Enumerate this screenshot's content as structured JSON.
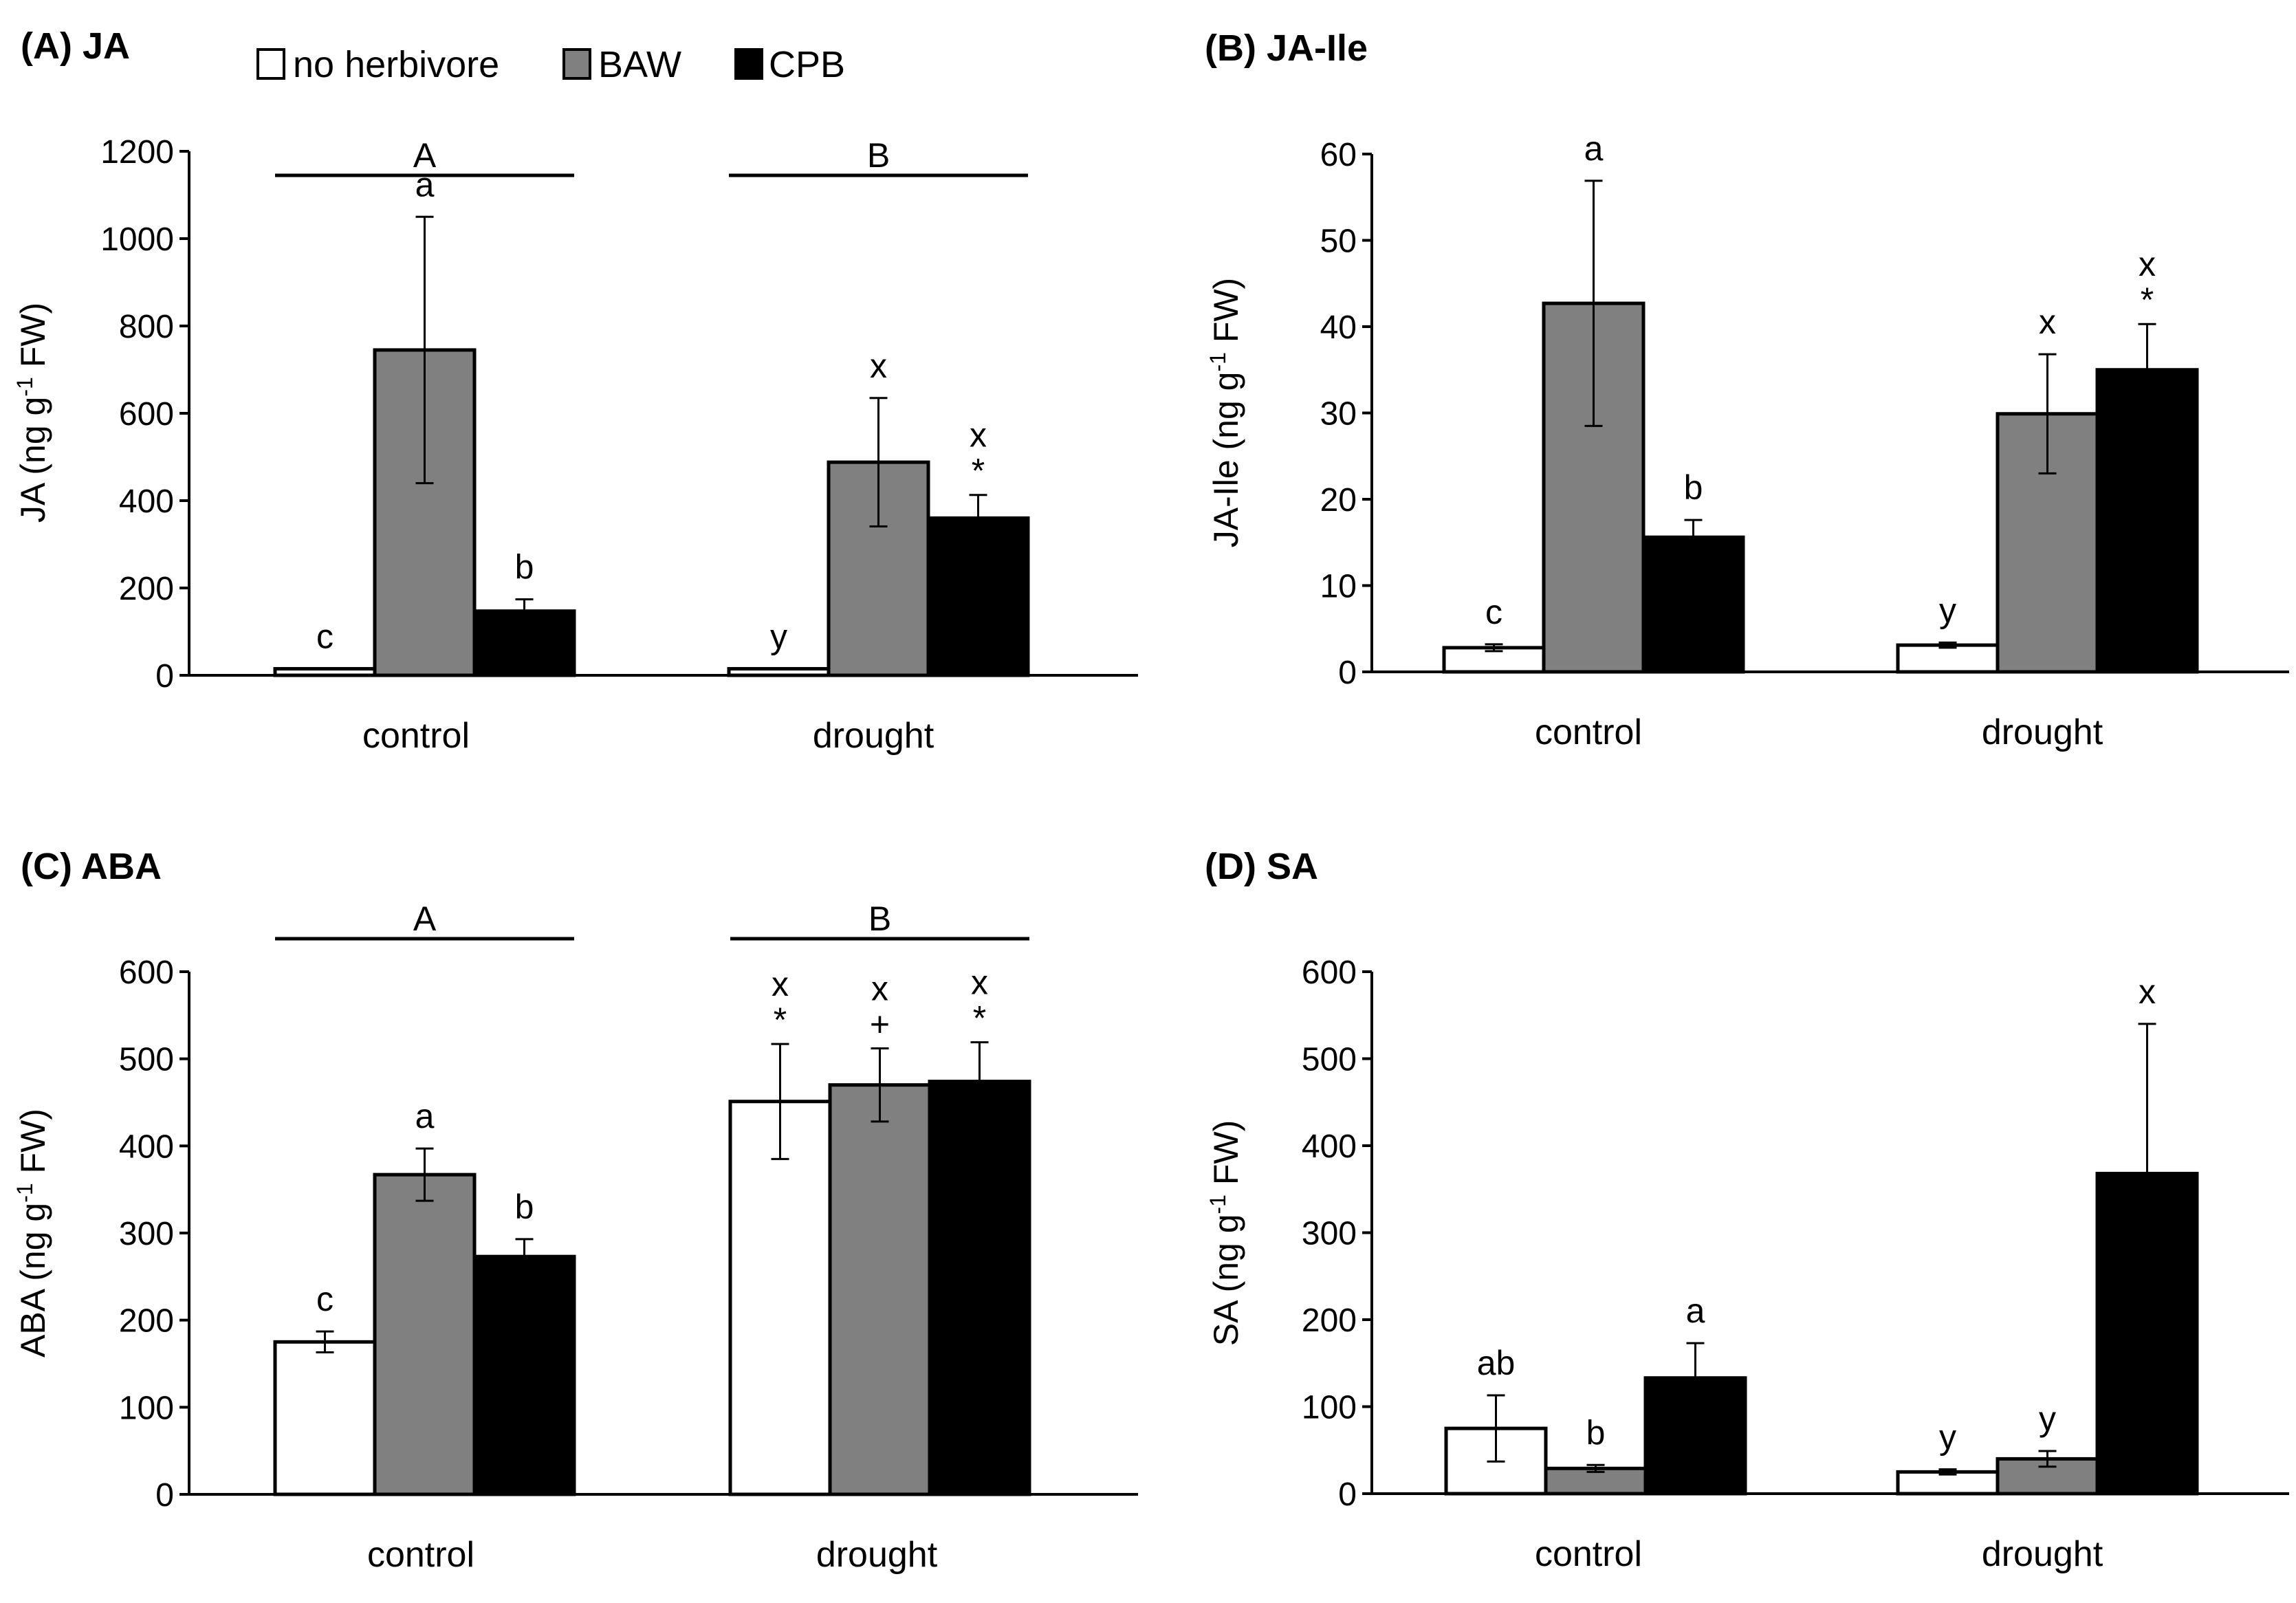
{
  "legend": {
    "items": [
      {
        "label": "no herbivore",
        "color": "#ffffff"
      },
      {
        "label": "BAW",
        "color": "#808080"
      },
      {
        "label": "CPB",
        "color": "#000000"
      }
    ]
  },
  "chart_data": [
    {
      "type": "bar",
      "title": "(A) JA",
      "ylabel_main": "JA (ng g",
      "ylabel_sup": "-1",
      "ylabel_end": " FW)",
      "ylim": [
        0,
        1200
      ],
      "yticks": [
        0,
        200,
        400,
        600,
        800,
        1000,
        1200
      ],
      "categories": [
        "control",
        "drought"
      ],
      "series": [
        {
          "name": "no herbivore",
          "color": "#ffffff",
          "values": [
            15,
            15
          ],
          "errors": [
            0,
            0
          ],
          "letters": [
            "c",
            "y"
          ],
          "marks": [
            "",
            ""
          ]
        },
        {
          "name": "BAW",
          "color": "#808080",
          "values": [
            745,
            488
          ],
          "errors": [
            305,
            147
          ],
          "letters": [
            "a",
            "x"
          ],
          "marks": [
            "",
            ""
          ]
        },
        {
          "name": "CPB",
          "color": "#000000",
          "values": [
            147,
            360
          ],
          "errors": [
            27,
            53
          ],
          "letters": [
            "b",
            "x"
          ],
          "marks": [
            "",
            "*"
          ]
        }
      ],
      "group_bars": [
        {
          "label": "A",
          "category": 0
        },
        {
          "label": "B",
          "category": 1
        }
      ]
    },
    {
      "type": "bar",
      "title": "(B) JA-Ile",
      "ylabel_main": "JA-Ile (ng g",
      "ylabel_sup": "-1",
      "ylabel_end": " FW)",
      "ylim": [
        0,
        60
      ],
      "yticks": [
        0,
        10,
        20,
        30,
        40,
        50,
        60
      ],
      "categories": [
        "control",
        "drought"
      ],
      "series": [
        {
          "name": "no herbivore",
          "color": "#ffffff",
          "values": [
            2.8,
            3.1
          ],
          "errors": [
            0.4,
            0.3
          ],
          "letters": [
            "c",
            "y"
          ],
          "marks": [
            "",
            ""
          ]
        },
        {
          "name": "BAW",
          "color": "#808080",
          "values": [
            42.7,
            29.9
          ],
          "errors": [
            14.2,
            6.9
          ],
          "letters": [
            "a",
            "x"
          ],
          "marks": [
            "",
            ""
          ]
        },
        {
          "name": "CPB",
          "color": "#000000",
          "values": [
            15.6,
            35.0
          ],
          "errors": [
            2.0,
            5.3
          ],
          "letters": [
            "b",
            "x"
          ],
          "marks": [
            "",
            "*"
          ]
        }
      ],
      "group_bars": []
    },
    {
      "type": "bar",
      "title": "(C) ABA",
      "ylabel_main": "ABA (ng g",
      "ylabel_sup": "-1",
      "ylabel_end": " FW)",
      "ylim": [
        0,
        600
      ],
      "yticks": [
        0,
        100,
        200,
        300,
        400,
        500,
        600
      ],
      "categories": [
        "control",
        "drought"
      ],
      "series": [
        {
          "name": "no herbivore",
          "color": "#ffffff",
          "values": [
            175,
            451
          ],
          "errors": [
            12,
            66
          ],
          "letters": [
            "c",
            "x"
          ],
          "marks": [
            "",
            "*"
          ]
        },
        {
          "name": "BAW",
          "color": "#808080",
          "values": [
            367,
            470
          ],
          "errors": [
            30,
            42
          ],
          "letters": [
            "a",
            "x"
          ],
          "marks": [
            "",
            "+"
          ]
        },
        {
          "name": "CPB",
          "color": "#000000",
          "values": [
            273,
            474
          ],
          "errors": [
            20,
            45
          ],
          "letters": [
            "b",
            "x"
          ],
          "marks": [
            "",
            "*"
          ]
        }
      ],
      "group_bars": [
        {
          "label": "A",
          "category": 0
        },
        {
          "label": "B",
          "category": 1
        }
      ]
    },
    {
      "type": "bar",
      "title": "(D) SA",
      "ylabel_main": "SA (ng g",
      "ylabel_sup": "-1",
      "ylabel_end": " FW)",
      "ylim": [
        0,
        600
      ],
      "yticks": [
        0,
        100,
        200,
        300,
        400,
        500,
        600
      ],
      "categories": [
        "control",
        "drought"
      ],
      "series": [
        {
          "name": "no herbivore",
          "color": "#ffffff",
          "values": [
            75,
            25
          ],
          "errors": [
            38,
            3
          ],
          "letters": [
            "ab",
            "y"
          ],
          "marks": [
            "",
            ""
          ]
        },
        {
          "name": "BAW",
          "color": "#808080",
          "values": [
            29,
            40
          ],
          "errors": [
            4,
            9
          ],
          "letters": [
            "b",
            "y"
          ],
          "marks": [
            "",
            ""
          ]
        },
        {
          "name": "CPB",
          "color": "#000000",
          "values": [
            133,
            368
          ],
          "errors": [
            40,
            172
          ],
          "letters": [
            "a",
            "x"
          ],
          "marks": [
            "",
            ""
          ]
        }
      ],
      "group_bars": []
    }
  ]
}
